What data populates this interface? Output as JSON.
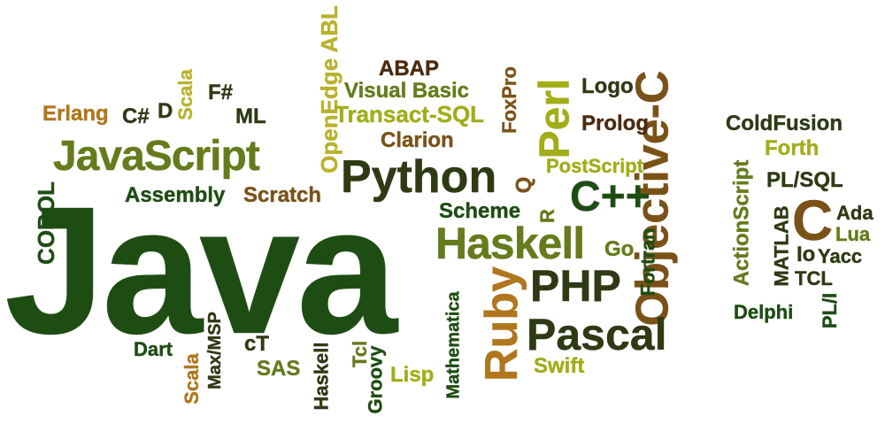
{
  "words": [
    {
      "id": "java",
      "text": "Java"
    },
    {
      "id": "javascript",
      "text": "JavaScript"
    },
    {
      "id": "python",
      "text": "Python"
    },
    {
      "id": "objective-c",
      "text": "Objective-C"
    },
    {
      "id": "haskell-large",
      "text": "Haskell"
    },
    {
      "id": "pascal",
      "text": "Pascal"
    },
    {
      "id": "php",
      "text": "PHP"
    },
    {
      "id": "cpp",
      "text": "C++"
    },
    {
      "id": "ruby",
      "text": "Ruby"
    },
    {
      "id": "perl",
      "text": "Perl"
    },
    {
      "id": "c",
      "text": "C"
    },
    {
      "id": "cobol",
      "text": "COBOL"
    },
    {
      "id": "erlang",
      "text": "Erlang"
    },
    {
      "id": "csharp",
      "text": "C#"
    },
    {
      "id": "d",
      "text": "D"
    },
    {
      "id": "scala-top",
      "text": "Scala"
    },
    {
      "id": "fsharp",
      "text": "F#"
    },
    {
      "id": "ml",
      "text": "ML"
    },
    {
      "id": "openedge-abl",
      "text": "OpenEdge ABL"
    },
    {
      "id": "abap",
      "text": "ABAP"
    },
    {
      "id": "visual-basic",
      "text": "Visual Basic"
    },
    {
      "id": "transact-sql",
      "text": "Transact-SQL"
    },
    {
      "id": "foxpro",
      "text": "FoxPro"
    },
    {
      "id": "logo",
      "text": "Logo"
    },
    {
      "id": "prolog",
      "text": "Prolog"
    },
    {
      "id": "clarion",
      "text": "Clarion"
    },
    {
      "id": "coldfusion",
      "text": "ColdFusion"
    },
    {
      "id": "forth",
      "text": "Forth"
    },
    {
      "id": "postscript",
      "text": "PostScript"
    },
    {
      "id": "assembly",
      "text": "Assembly"
    },
    {
      "id": "scratch",
      "text": "Scratch"
    },
    {
      "id": "q",
      "text": "Q"
    },
    {
      "id": "scheme",
      "text": "Scheme"
    },
    {
      "id": "r",
      "text": "R"
    },
    {
      "id": "actionscript",
      "text": "ActionScript"
    },
    {
      "id": "plsql",
      "text": "PL/SQL"
    },
    {
      "id": "ada",
      "text": "Ada"
    },
    {
      "id": "lua",
      "text": "Lua"
    },
    {
      "id": "go",
      "text": "Go"
    },
    {
      "id": "fortran",
      "text": "Fortran"
    },
    {
      "id": "matlab",
      "text": "MATLAB"
    },
    {
      "id": "io",
      "text": "Io"
    },
    {
      "id": "yacc",
      "text": "Yacc"
    },
    {
      "id": "tcl-upper",
      "text": "TCL"
    },
    {
      "id": "pli",
      "text": "PL/I"
    },
    {
      "id": "delphi",
      "text": "Delphi"
    },
    {
      "id": "mathematica",
      "text": "Mathematica"
    },
    {
      "id": "dart",
      "text": "Dart"
    },
    {
      "id": "maxmsp",
      "text": "Max/MSP"
    },
    {
      "id": "ct",
      "text": "cT"
    },
    {
      "id": "sas",
      "text": "SAS"
    },
    {
      "id": "haskell-small",
      "text": "Haskell"
    },
    {
      "id": "tcl",
      "text": "Tcl"
    },
    {
      "id": "groovy",
      "text": "Groovy"
    },
    {
      "id": "lisp",
      "text": "Lisp"
    },
    {
      "id": "swift",
      "text": "Swift"
    },
    {
      "id": "scala-bottom",
      "text": "Scala"
    }
  ]
}
